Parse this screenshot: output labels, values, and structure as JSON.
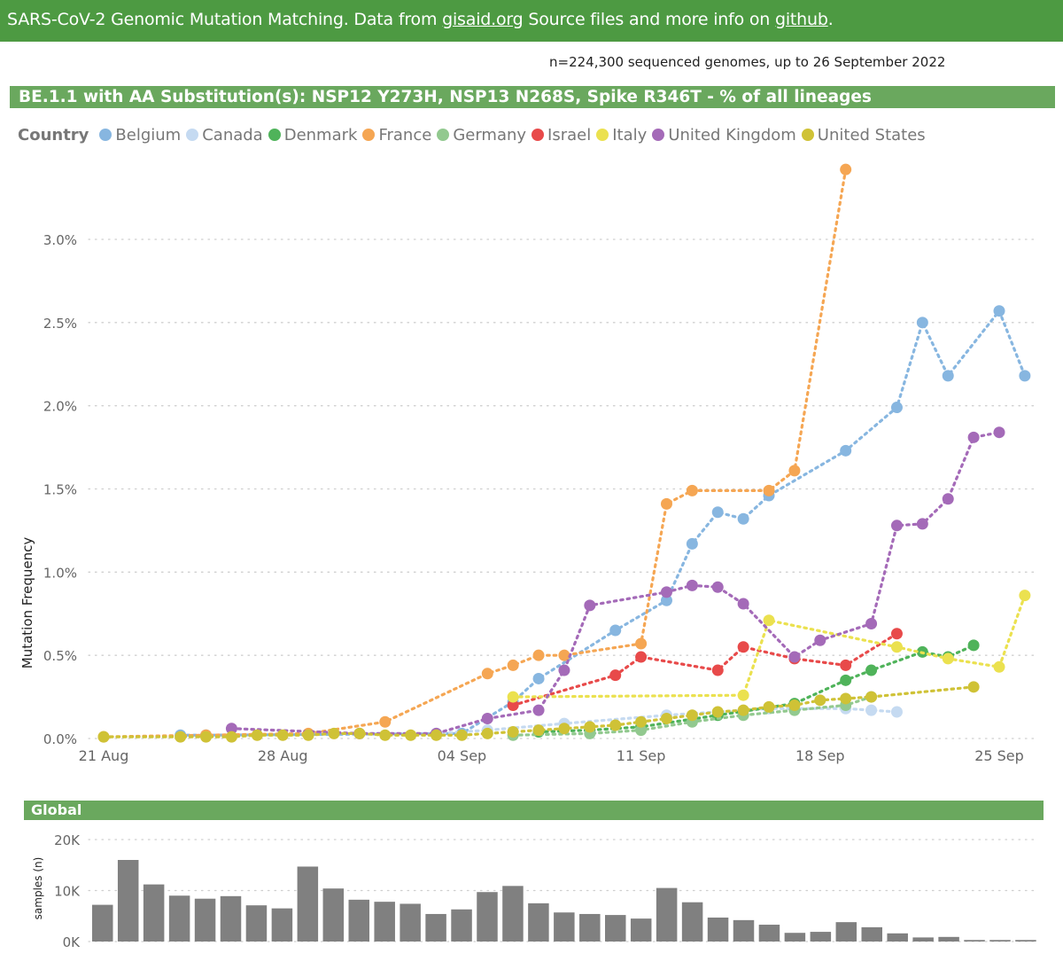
{
  "header": {
    "prefix": "SARS-CoV-2 Genomic Mutation Matching. Data from ",
    "link1": "gisaid.org",
    "middle": " Source files and more info on ",
    "link2": "github",
    "suffix": "."
  },
  "subtitle": "n=224,300 sequenced genomes, up to 26 September 2022",
  "chart_title": "BE.1.1 with AA Substitution(s): NSP12 Y273H, NSP13 N268S, Spike R346T - % of all lineages",
  "global_title": "Global",
  "chart_data": [
    {
      "type": "line",
      "title": "BE.1.1 with AA Substitution(s): NSP12 Y273H, NSP13 N268S, Spike R346T - % of all lineages",
      "ylabel": "Mutation Frequency",
      "xlabel": "",
      "legend_title": "Country",
      "ylim": [
        0,
        3.4
      ],
      "yticks": [
        0,
        0.5,
        1.0,
        1.5,
        2.0,
        2.5,
        3.0
      ],
      "ytick_labels": [
        "0.0%",
        "0.5%",
        "1.0%",
        "1.5%",
        "2.0%",
        "2.5%",
        "3.0%"
      ],
      "x_start": "21 Aug",
      "xlim_days": [
        0,
        35
      ],
      "xticks_days": [
        0,
        7,
        14,
        21,
        28,
        35
      ],
      "xtick_labels": [
        "21 Aug",
        "28 Aug",
        "04 Sep",
        "11 Sep",
        "18 Sep",
        "25 Sep"
      ],
      "series": [
        {
          "name": "Belgium",
          "color": "#87b6e0",
          "points": [
            [
              3,
              0.02
            ],
            [
              4,
              0.02
            ],
            [
              14,
              0.03
            ],
            [
              16,
              0.22
            ],
            [
              17,
              0.36
            ],
            [
              20,
              0.65
            ],
            [
              22,
              0.83
            ],
            [
              23,
              1.17
            ],
            [
              24,
              1.36
            ],
            [
              25,
              1.32
            ],
            [
              26,
              1.46
            ],
            [
              29,
              1.73
            ],
            [
              31,
              1.99
            ],
            [
              32,
              2.5
            ],
            [
              33,
              2.18
            ],
            [
              35,
              2.57
            ],
            [
              36,
              2.18
            ]
          ]
        },
        {
          "name": "Canada",
          "color": "#c5daf1",
          "points": [
            [
              13,
              0.03
            ],
            [
              15,
              0.05
            ],
            [
              18,
              0.09
            ],
            [
              22,
              0.14
            ],
            [
              26,
              0.18
            ],
            [
              29,
              0.18
            ],
            [
              30,
              0.17
            ],
            [
              31,
              0.16
            ]
          ]
        },
        {
          "name": "Denmark",
          "color": "#4fb35a",
          "points": [
            [
              17,
              0.04
            ],
            [
              19,
              0.05
            ],
            [
              21,
              0.07
            ],
            [
              24,
              0.14
            ],
            [
              27,
              0.21
            ],
            [
              29,
              0.35
            ],
            [
              30,
              0.41
            ],
            [
              32,
              0.52
            ],
            [
              33,
              0.49
            ],
            [
              34,
              0.56
            ]
          ]
        },
        {
          "name": "France",
          "color": "#f5a653",
          "points": [
            [
              0,
              0.01
            ],
            [
              4,
              0.02
            ],
            [
              8,
              0.03
            ],
            [
              11,
              0.1
            ],
            [
              15,
              0.39
            ],
            [
              16,
              0.44
            ],
            [
              17,
              0.5
            ],
            [
              18,
              0.5
            ],
            [
              21,
              0.57
            ],
            [
              22,
              1.41
            ],
            [
              23,
              1.49
            ],
            [
              26,
              1.49
            ],
            [
              27,
              1.61
            ],
            [
              29,
              3.42
            ]
          ]
        },
        {
          "name": "Germany",
          "color": "#92c98f",
          "points": [
            [
              16,
              0.02
            ],
            [
              19,
              0.03
            ],
            [
              21,
              0.05
            ],
            [
              23,
              0.1
            ],
            [
              25,
              0.14
            ],
            [
              27,
              0.17
            ],
            [
              29,
              0.2
            ],
            [
              30,
              0.25
            ]
          ]
        },
        {
          "name": "Israel",
          "color": "#e84a4a",
          "points": [
            [
              16,
              0.2
            ],
            [
              20,
              0.38
            ],
            [
              21,
              0.49
            ],
            [
              24,
              0.41
            ],
            [
              25,
              0.55
            ],
            [
              27,
              0.48
            ],
            [
              29,
              0.44
            ],
            [
              31,
              0.63
            ]
          ]
        },
        {
          "name": "Italy",
          "color": "#ebe14f",
          "points": [
            [
              16,
              0.25
            ],
            [
              25,
              0.26
            ],
            [
              26,
              0.71
            ],
            [
              31,
              0.55
            ],
            [
              33,
              0.48
            ],
            [
              35,
              0.43
            ],
            [
              36,
              0.86
            ]
          ]
        },
        {
          "name": "United Kingdom",
          "color": "#a46ab8",
          "points": [
            [
              5,
              0.06
            ],
            [
              10,
              0.03
            ],
            [
              13,
              0.03
            ],
            [
              15,
              0.12
            ],
            [
              17,
              0.17
            ],
            [
              18,
              0.41
            ],
            [
              19,
              0.8
            ],
            [
              22,
              0.88
            ],
            [
              23,
              0.92
            ],
            [
              24,
              0.91
            ],
            [
              25,
              0.81
            ],
            [
              27,
              0.49
            ],
            [
              28,
              0.59
            ],
            [
              30,
              0.69
            ],
            [
              31,
              1.28
            ],
            [
              32,
              1.29
            ],
            [
              33,
              1.44
            ],
            [
              34,
              1.81
            ],
            [
              35,
              1.84
            ]
          ]
        },
        {
          "name": "United States",
          "color": "#cfc236",
          "points": [
            [
              0,
              0.01
            ],
            [
              3,
              0.01
            ],
            [
              4,
              0.01
            ],
            [
              5,
              0.01
            ],
            [
              6,
              0.02
            ],
            [
              7,
              0.02
            ],
            [
              8,
              0.02
            ],
            [
              9,
              0.03
            ],
            [
              10,
              0.03
            ],
            [
              11,
              0.02
            ],
            [
              12,
              0.02
            ],
            [
              13,
              0.02
            ],
            [
              14,
              0.02
            ],
            [
              15,
              0.03
            ],
            [
              16,
              0.04
            ],
            [
              17,
              0.05
            ],
            [
              18,
              0.06
            ],
            [
              19,
              0.07
            ],
            [
              20,
              0.08
            ],
            [
              21,
              0.1
            ],
            [
              22,
              0.12
            ],
            [
              23,
              0.14
            ],
            [
              24,
              0.16
            ],
            [
              25,
              0.17
            ],
            [
              26,
              0.19
            ],
            [
              27,
              0.2
            ],
            [
              28,
              0.23
            ],
            [
              29,
              0.24
            ],
            [
              30,
              0.25
            ],
            [
              34,
              0.31
            ]
          ]
        }
      ]
    },
    {
      "type": "bar",
      "title": "Global",
      "ylabel": "samples (n)",
      "xlabel": "",
      "ylim": [
        0,
        20000
      ],
      "yticks": [
        0,
        10000,
        20000
      ],
      "ytick_labels": [
        "0K",
        "10K",
        "20K"
      ],
      "color": "#808080",
      "values": [
        7200,
        16000,
        11200,
        9000,
        8400,
        8900,
        7100,
        6500,
        14700,
        10400,
        8200,
        7800,
        7400,
        5400,
        6300,
        9700,
        10900,
        7500,
        5700,
        5400,
        5200,
        4500,
        10500,
        7700,
        4700,
        4200,
        3300,
        1700,
        1900,
        3800,
        2800,
        1600,
        800,
        900,
        300,
        300,
        300
      ]
    }
  ]
}
